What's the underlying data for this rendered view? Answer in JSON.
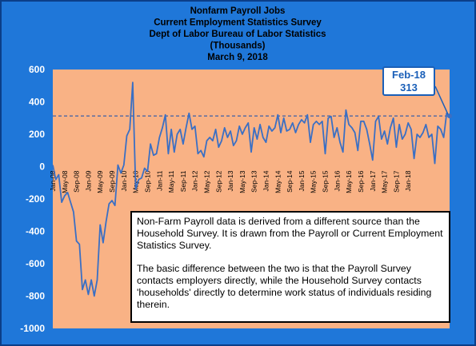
{
  "chart_data": {
    "type": "line",
    "title_lines": [
      "Nonfarm Payroll Jobs",
      "Current Employment  Statistics Survey",
      "Dept of Labor Bureau of Labor Statistics",
      "(Thousands)",
      "March 9, 2018"
    ],
    "ylim": [
      -1000,
      600
    ],
    "yticks": [
      -1000,
      -800,
      -600,
      -400,
      -200,
      0,
      200,
      400,
      600
    ],
    "x_tick_labels": [
      "Jan-08",
      "May-08",
      "Sep-08",
      "Jan-09",
      "May-09",
      "Sep-09",
      "Jan-10",
      "May-10",
      "Sep-10",
      "Jan-11",
      "May-11",
      "Sep-11",
      "Jan-12",
      "May-12",
      "Sep-12",
      "Jan-13",
      "May-13",
      "Sep-13",
      "Jan-14",
      "May-14",
      "Sep-14",
      "Jan-15",
      "May-15",
      "Sep-15",
      "Jan-16",
      "May-16",
      "Sep-16",
      "Jan-17",
      "May-17",
      "Sep-17",
      "Jan-18"
    ],
    "x_start": "Jan-08",
    "x_end": "Feb-18",
    "values": [
      10,
      -80,
      -50,
      -220,
      -180,
      -160,
      -220,
      -280,
      -460,
      -480,
      -760,
      -700,
      -790,
      -700,
      -800,
      -700,
      -360,
      -470,
      -340,
      -230,
      -210,
      -240,
      10,
      -40,
      10,
      190,
      230,
      520,
      -140,
      -80,
      -70,
      -10,
      -30,
      140,
      70,
      80,
      180,
      240,
      320,
      80,
      230,
      90,
      200,
      230,
      140,
      240,
      330,
      230,
      250,
      80,
      100,
      60,
      160,
      180,
      160,
      230,
      120,
      160,
      240,
      180,
      220,
      130,
      160,
      250,
      200,
      240,
      270,
      90,
      240,
      170,
      260,
      180,
      150,
      250,
      220,
      240,
      320,
      210,
      300,
      220,
      230,
      270,
      210,
      260,
      290,
      270,
      320,
      150,
      260,
      280,
      260,
      280,
      80,
      300,
      310,
      180,
      240,
      150,
      90,
      350,
      260,
      240,
      210,
      100,
      280,
      280,
      230,
      140,
      40,
      280,
      310,
      170,
      220,
      140,
      240,
      300,
      120,
      260,
      170,
      200,
      270,
      230,
      50,
      200,
      180,
      210,
      260,
      180,
      200,
      20,
      250,
      230,
      180,
      330,
      313
    ],
    "grid": false,
    "reference_line": {
      "value": 313,
      "style": "dashed"
    },
    "callout": {
      "date": "Feb-18",
      "value": "313"
    },
    "colors": {
      "line": "#3a6fc4",
      "plot_bg": "#f9b285",
      "frame": "#1f77d9",
      "grid_dash": "#3a5fa8"
    }
  },
  "note": {
    "paragraphs": [
      "Non-Farm Payroll data is derived from a different source than the Household Survey.  It is drawn from the Payroll or Current Employment Statistics Survey.",
      "The basic difference between the two is that the Payroll Survey contacts employers directly, while the Household Survey contacts 'households' directly to determine work status of individuals residing therein."
    ]
  }
}
